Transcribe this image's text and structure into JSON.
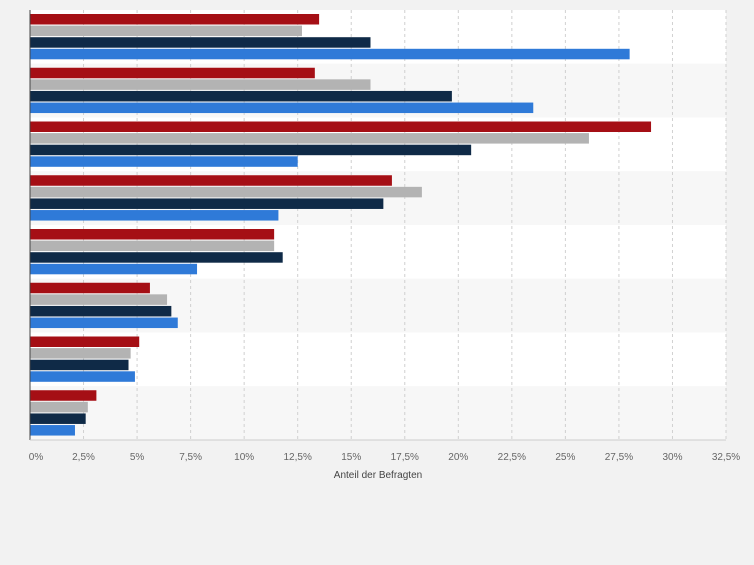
{
  "chart_data": {
    "type": "bar",
    "orientation": "horizontal",
    "xlabel": "Anteil der Befragten",
    "ylabel": "",
    "xlim": [
      0,
      32.5
    ],
    "x_ticks": [
      0,
      2.5,
      5,
      7.5,
      10,
      12.5,
      15,
      17.5,
      20,
      22.5,
      25,
      27.5,
      30,
      32.5
    ],
    "x_tick_labels": [
      "0%",
      "2,5%",
      "5%",
      "7,5%",
      "10%",
      "12,5%",
      "15%",
      "17,5%",
      "20%",
      "22,5%",
      "25%",
      "27,5%",
      "30%",
      "32,5%"
    ],
    "category_count": 8,
    "grid": true,
    "legend": "none",
    "colors": [
      "#a50f15",
      "#b3b3b3",
      "#0f2a47",
      "#2f7ad8"
    ],
    "series": [
      {
        "values": [
          13.5,
          13.3,
          29.0,
          16.9,
          11.4,
          5.6,
          5.1,
          3.1
        ]
      },
      {
        "values": [
          12.7,
          15.9,
          26.1,
          18.3,
          11.4,
          6.4,
          4.7,
          2.7
        ]
      },
      {
        "values": [
          15.9,
          19.7,
          20.6,
          16.5,
          11.8,
          6.6,
          4.6,
          2.6
        ]
      },
      {
        "values": [
          28.0,
          23.5,
          12.5,
          11.6,
          7.8,
          6.9,
          4.9,
          2.1
        ]
      }
    ]
  }
}
